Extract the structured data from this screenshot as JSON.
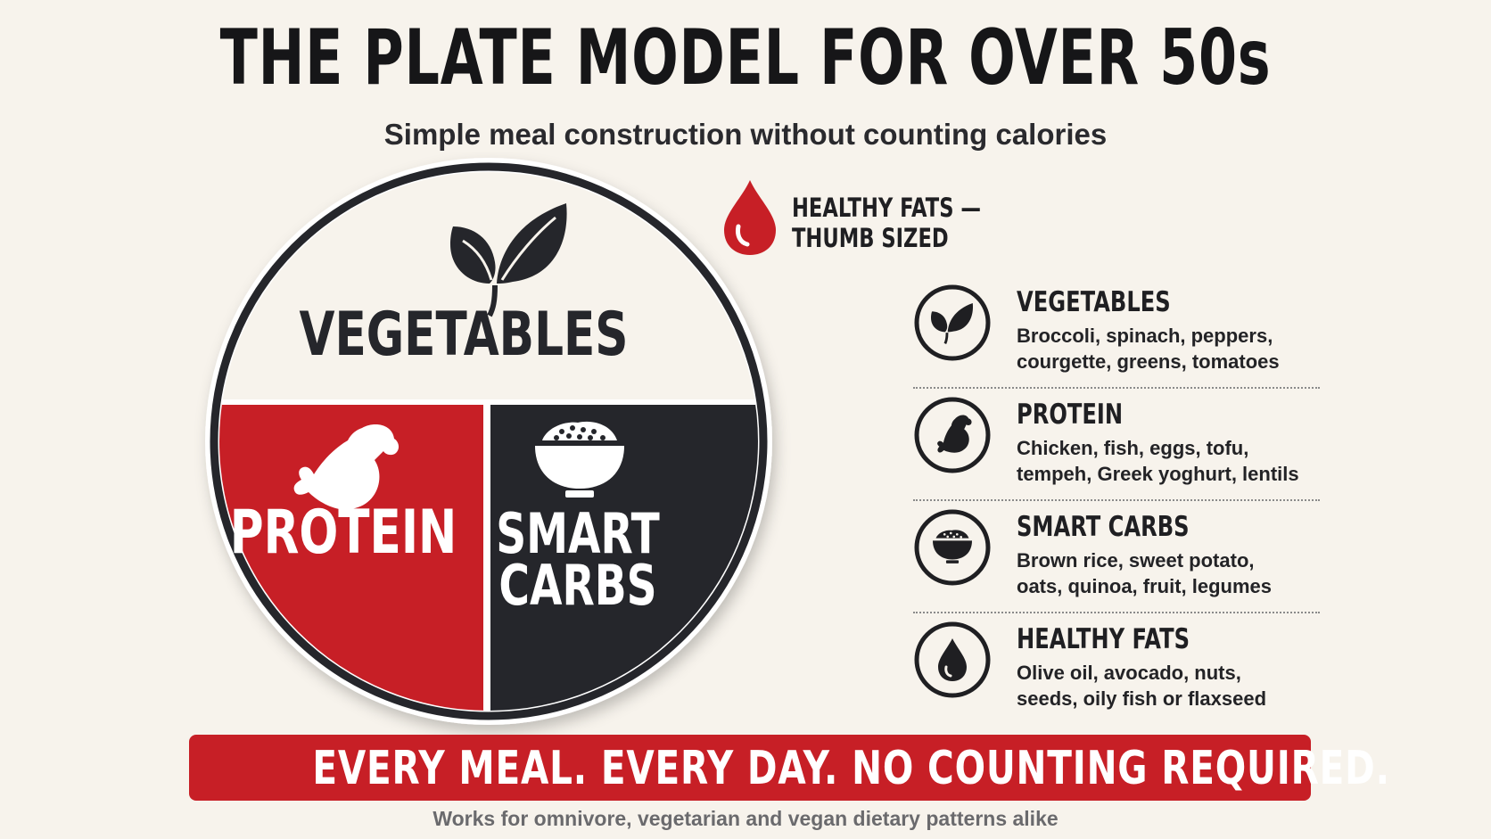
{
  "header": {
    "title": "THE PLATE MODEL FOR OVER 50s",
    "subtitle": "Simple meal construction without counting calories"
  },
  "plate": {
    "sections": [
      {
        "label": "VEGETABLES",
        "icon": "leaf-icon",
        "color": "#f7f3ec"
      },
      {
        "label": "PROTEIN",
        "icon": "chicken-leg-icon",
        "color": "#c71f26"
      },
      {
        "label_line1": "SMART",
        "label_line2": "CARBS",
        "icon": "rice-bowl-icon",
        "color": "#25262b"
      }
    ]
  },
  "fats_callout": {
    "icon": "oil-drop-icon",
    "line1": "HEALTHY FATS —",
    "line2": "THUMB SIZED"
  },
  "legend": [
    {
      "name": "VEGETABLES",
      "icon": "leaf-icon",
      "line1": "Broccoli, spinach, peppers,",
      "line2": "courgette, greens, tomatoes"
    },
    {
      "name": "PROTEIN",
      "icon": "chicken-leg-icon",
      "line1": "Chicken, fish, eggs, tofu,",
      "line2": "tempeh, Greek yoghurt, lentils"
    },
    {
      "name": "SMART CARBS",
      "icon": "rice-bowl-icon",
      "line1": "Brown rice, sweet potato,",
      "line2": "oats, quinoa, fruit, legumes"
    },
    {
      "name": "HEALTHY FATS",
      "icon": "oil-drop-icon",
      "line1": "Olive oil, avocado, nuts,",
      "line2": "seeds, oily fish or flaxseed"
    }
  ],
  "banner": {
    "text": "EVERY MEAL. EVERY DAY. NO COUNTING REQUIRED.",
    "color": "#c71f26"
  },
  "footer": {
    "text": "Works for omnivore, vegetarian and vegan dietary patterns alike"
  }
}
